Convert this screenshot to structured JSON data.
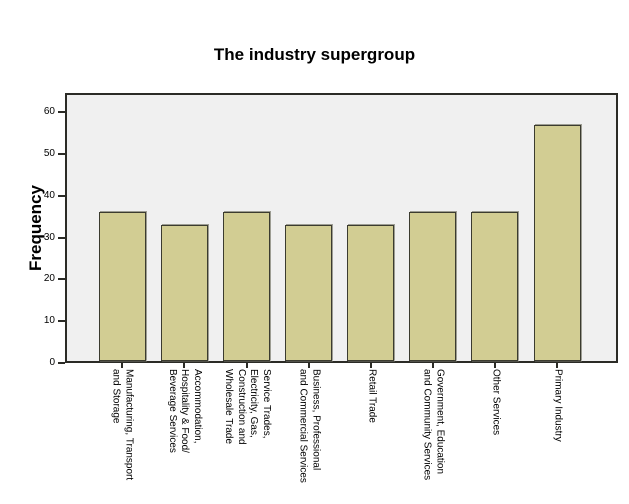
{
  "page": {
    "background": "#ffffff"
  },
  "chart_data": {
    "type": "bar",
    "title": "The industry supergroup",
    "xlabel": "",
    "ylabel": "Frequency",
    "ylim": [
      0,
      64
    ],
    "yticks": [
      0,
      10,
      20,
      30,
      40,
      50,
      60
    ],
    "grid": false,
    "legend": "none",
    "categories": [
      "Manufacturing, Transport and Storage",
      "Accommodation, Hospitality & Food/Beverage Services",
      "Service Trades, Electricity, Gas, Construction and Wholesale Trade",
      "Business, Professional and Commercial Services",
      "Retail Trade",
      "Government, Education and Community Services",
      "Other Services",
      "Primary Industry"
    ],
    "category_display_lines": [
      [
        "Manufacturing, Transport",
        "and Storage"
      ],
      [
        "Accommodation,",
        "Hospitality & Food/",
        "Beverage Services"
      ],
      [
        "Service Trades,",
        "Electricity, Gas,",
        "Construction and",
        "Wholesale Trade"
      ],
      [
        "Business, Professional",
        "and Commercial Services"
      ],
      [
        "Retail Trade"
      ],
      [
        "Government, Education",
        "and Community Services"
      ],
      [
        "Other Services"
      ],
      [
        "Primary Industry"
      ]
    ],
    "values": [
      36,
      33,
      36,
      33,
      33,
      36,
      36,
      57
    ],
    "colors": {
      "bar_fill": "#d2cd93",
      "bar_border": "#3b3b2f",
      "plot_bg": "#f0f0f0",
      "frame": "#2b2b26",
      "text": "#000000"
    }
  }
}
